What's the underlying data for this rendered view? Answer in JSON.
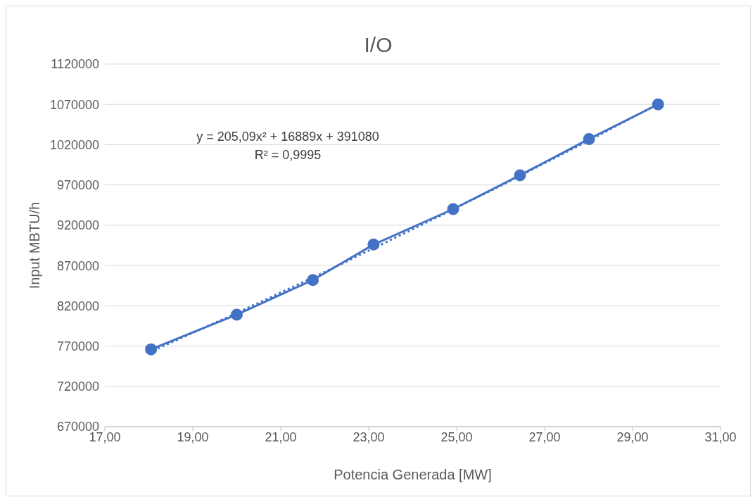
{
  "chart_data": {
    "type": "line",
    "title": "I/O",
    "xlabel": "Potencia Generada [MW]",
    "ylabel": "Input MBTU/h",
    "xlim": [
      17,
      31
    ],
    "xticks": [
      {
        "value": 17,
        "label": "17,00"
      },
      {
        "value": 19,
        "label": "19,00"
      },
      {
        "value": 21,
        "label": "21,00"
      },
      {
        "value": 23,
        "label": "23,00"
      },
      {
        "value": 25,
        "label": "25,00"
      },
      {
        "value": 27,
        "label": "27,00"
      },
      {
        "value": 29,
        "label": "29,00"
      },
      {
        "value": 31,
        "label": "31,00"
      }
    ],
    "ylim": [
      670000,
      1120000
    ],
    "yticks": [
      670000,
      720000,
      770000,
      820000,
      870000,
      920000,
      970000,
      1020000,
      1070000,
      1120000
    ],
    "grid": "y",
    "series": [
      {
        "color": "#4472c4",
        "marker": "circle",
        "line_style": "solid",
        "x": [
          18.05,
          20.0,
          21.73,
          23.11,
          24.92,
          26.44,
          28.01,
          29.58
        ],
        "values": [
          766000,
          809000,
          852000,
          896000,
          940000,
          982000,
          1027000,
          1070000
        ]
      },
      {
        "color": "#4472c4",
        "marker": "none",
        "line_style": "dotted",
        "x": [
          18,
          20,
          22,
          24,
          26,
          28,
          29.6
        ],
        "values": [
          762000,
          811000,
          862000,
          915000,
          969000,
          1025000,
          1071000
        ]
      }
    ],
    "annotations": [
      "y = 205,09x² + 16889x + 391080",
      "R² = 0,9995"
    ]
  }
}
